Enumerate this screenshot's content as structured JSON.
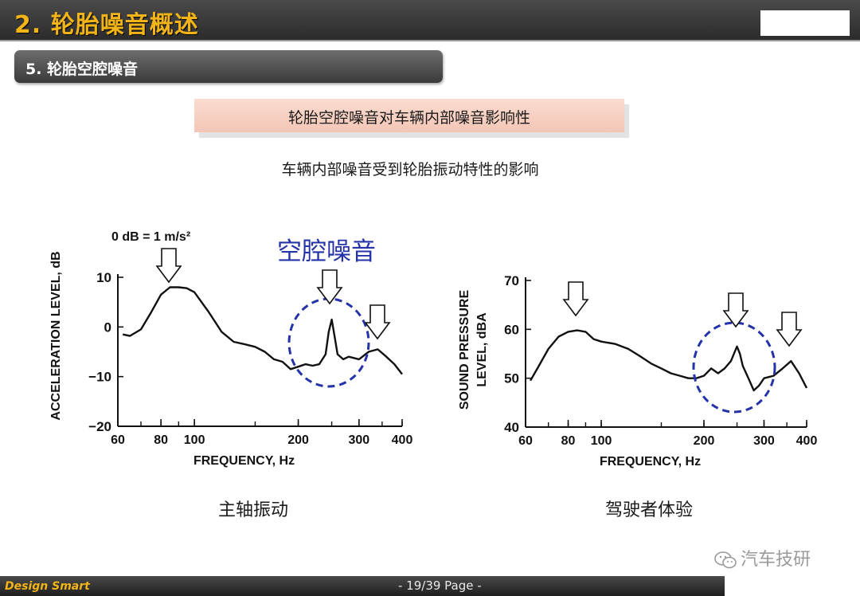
{
  "header": {
    "title": "2. 轮胎噪音概述"
  },
  "section": {
    "title": "5. 轮胎空腔噪音"
  },
  "callout": {
    "text": "轮胎空腔噪音对车辆内部噪音影响性"
  },
  "description": "车辆内部噪音受到轮胎振动特性的影响",
  "annotation": {
    "cavity_noise": "空腔噪音",
    "reference": "0 dB = 1 m/s²"
  },
  "captions": {
    "left": "主轴振动",
    "right": "驾驶者体验"
  },
  "watermark": "汽车技研",
  "footer": {
    "brand": "Design Smart",
    "page": "- 19/39 Page -"
  },
  "colors": {
    "title_yellow": "#f2b417",
    "highlight_blue": "#2533a8",
    "callout_pink": "#f6d0c2"
  },
  "chart_data": [
    {
      "type": "line",
      "xlabel": "FREQUENCY, Hz",
      "ylabel": "ACCELERATION LEVEL, dB",
      "x_scale": "log",
      "xlim": [
        60,
        400
      ],
      "ylim": [
        -20,
        10
      ],
      "x_ticks": [
        "60",
        "80",
        "100",
        "200",
        "300",
        "400"
      ],
      "y_ticks": [
        "10",
        "0",
        "−10",
        "−20"
      ],
      "x": [
        62,
        65,
        70,
        75,
        80,
        85,
        90,
        95,
        100,
        110,
        120,
        130,
        140,
        150,
        160,
        170,
        180,
        190,
        200,
        210,
        220,
        230,
        240,
        245,
        250,
        255,
        260,
        270,
        280,
        300,
        320,
        340,
        360,
        380,
        400
      ],
      "y": [
        -1.5,
        -1.8,
        -0.5,
        3,
        6.5,
        8,
        8,
        7.8,
        7,
        3,
        -1,
        -3,
        -3.5,
        -4,
        -5,
        -6.5,
        -7,
        -8.5,
        -8,
        -7.5,
        -7.8,
        -7.5,
        -5.5,
        -1,
        1.5,
        -2,
        -5.5,
        -6.5,
        -6,
        -6.5,
        -5,
        -4.5,
        -6,
        -7.5,
        -9.5
      ]
    },
    {
      "type": "line",
      "xlabel": "FREQUENCY, Hz",
      "ylabel": "SOUND PRESSURE LEVEL, dBA",
      "x_scale": "log",
      "xlim": [
        60,
        400
      ],
      "ylim": [
        40,
        70
      ],
      "x_ticks": [
        "60",
        "80",
        "100",
        "200",
        "300",
        "400"
      ],
      "y_ticks": [
        "70",
        "60",
        "50",
        "40"
      ],
      "x": [
        62,
        65,
        70,
        75,
        80,
        85,
        90,
        95,
        100,
        110,
        120,
        130,
        140,
        150,
        160,
        170,
        180,
        190,
        200,
        210,
        220,
        230,
        240,
        250,
        255,
        260,
        270,
        280,
        290,
        300,
        320,
        340,
        360,
        380,
        400
      ],
      "y": [
        49.5,
        52,
        56,
        58.5,
        59.5,
        59.8,
        59.5,
        58,
        57.5,
        57,
        56,
        54.5,
        53,
        52,
        51,
        50.5,
        50,
        50,
        50.5,
        52,
        51,
        52,
        53.5,
        56.5,
        55,
        52.5,
        50,
        47.5,
        48.5,
        50,
        50.5,
        52,
        53.5,
        51,
        48
      ]
    }
  ]
}
